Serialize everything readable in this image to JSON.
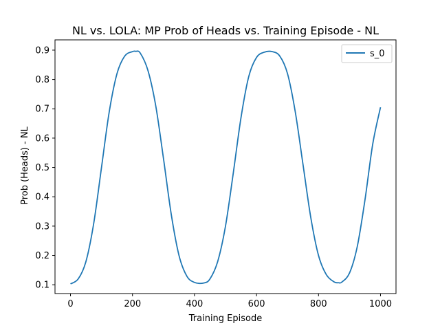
{
  "chart_data": {
    "type": "line",
    "title": "NL vs. LOLA: MP Prob of Heads vs. Training Episode - NL",
    "xlabel": "Training Episode",
    "ylabel": "Prob (Heads) - NL",
    "xlim": [
      -50,
      1050
    ],
    "ylim": [
      0.07,
      0.935
    ],
    "xticks": [
      0,
      200,
      400,
      600,
      800,
      1000
    ],
    "xtick_labels": [
      "0",
      "200",
      "400",
      "600",
      "800",
      "1000"
    ],
    "yticks": [
      0.1,
      0.2,
      0.3,
      0.4,
      0.5,
      0.6,
      0.7,
      0.8,
      0.9
    ],
    "ytick_labels": [
      "0.1",
      "0.2",
      "0.3",
      "0.4",
      "0.5",
      "0.6",
      "0.7",
      "0.8",
      "0.9"
    ],
    "grid": false,
    "legend_position": "top-right",
    "series": [
      {
        "name": "s_0",
        "color": "#1f77b4",
        "x": [
          0,
          25,
          50,
          75,
          100,
          125,
          150,
          175,
          200,
          210,
          225,
          250,
          275,
          300,
          325,
          350,
          375,
          400,
          430,
          450,
          475,
          500,
          525,
          550,
          575,
          600,
          625,
          650,
          675,
          700,
          725,
          750,
          775,
          800,
          825,
          850,
          865,
          875,
          900,
          925,
          950,
          975,
          1000
        ],
        "y": [
          0.103,
          0.12,
          0.18,
          0.31,
          0.5,
          0.69,
          0.82,
          0.88,
          0.895,
          0.896,
          0.89,
          0.83,
          0.71,
          0.53,
          0.34,
          0.2,
          0.13,
          0.108,
          0.106,
          0.12,
          0.18,
          0.3,
          0.48,
          0.67,
          0.81,
          0.875,
          0.893,
          0.895,
          0.88,
          0.82,
          0.69,
          0.51,
          0.33,
          0.2,
          0.135,
          0.11,
          0.107,
          0.109,
          0.14,
          0.23,
          0.39,
          0.58,
          0.705
        ]
      }
    ]
  }
}
